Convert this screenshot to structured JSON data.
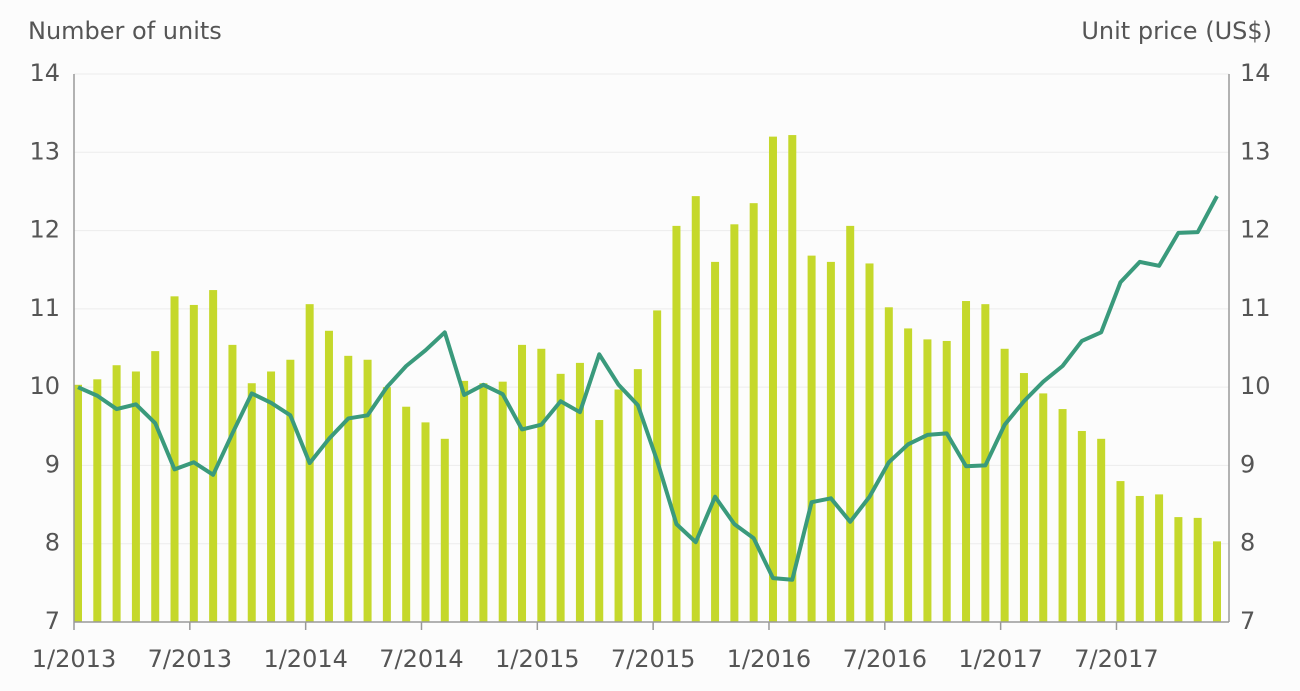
{
  "chart_data": {
    "type": "bar-line",
    "y_label": "Number of units",
    "y2_label": "Unit price (US$)",
    "categories": [
      "1/2013",
      null,
      null,
      null,
      null,
      null,
      "7/2013",
      null,
      null,
      null,
      null,
      null,
      "1/2014",
      null,
      null,
      null,
      null,
      null,
      "7/2014",
      null,
      null,
      null,
      null,
      null,
      "1/2015",
      null,
      null,
      null,
      null,
      null,
      "7/2015",
      null,
      null,
      null,
      null,
      null,
      "1/2016",
      null,
      null,
      null,
      null,
      null,
      "7/2016",
      null,
      null,
      null,
      null,
      null,
      "1/2017",
      null,
      null,
      null,
      null,
      null,
      "7/2017",
      null,
      null,
      null,
      null,
      null
    ],
    "series": [
      {
        "type": "bar",
        "color": "#c5d82b",
        "values": [
          10.03,
          10.1,
          10.28,
          10.2,
          10.46,
          11.16,
          11.05,
          11.24,
          10.54,
          10.05,
          10.2,
          10.35,
          11.06,
          10.72,
          10.4,
          10.35,
          10.0,
          9.75,
          9.55,
          9.34,
          10.08,
          10.05,
          10.07,
          10.54,
          10.49,
          10.17,
          10.31,
          9.58,
          9.97,
          10.23,
          10.98,
          12.06,
          12.44,
          11.6,
          12.08,
          12.35,
          13.2,
          13.22,
          11.68,
          11.6,
          12.06,
          11.58,
          11.02,
          10.75,
          10.61,
          10.59,
          11.1,
          11.06,
          10.49,
          10.18,
          9.92,
          9.72,
          9.44,
          9.34,
          8.8,
          8.61,
          8.63,
          8.34,
          8.33,
          8.03
        ]
      },
      {
        "type": "line",
        "axis": "y2",
        "color": "#3a9a7c",
        "values": [
          10.0,
          9.89,
          9.72,
          9.78,
          9.54,
          8.95,
          9.04,
          8.88,
          9.41,
          9.92,
          9.8,
          9.64,
          9.03,
          9.34,
          9.6,
          9.64,
          10.0,
          10.27,
          10.47,
          10.7,
          9.9,
          10.03,
          9.91,
          9.46,
          9.52,
          9.82,
          9.68,
          10.42,
          10.03,
          9.77,
          9.06,
          8.25,
          8.02,
          8.6,
          8.25,
          8.07,
          7.56,
          7.54,
          8.53,
          8.58,
          8.28,
          8.6,
          9.04,
          9.27,
          9.39,
          9.41,
          8.99,
          9.0,
          9.52,
          9.82,
          10.07,
          10.27,
          10.59,
          10.7,
          11.34,
          11.6,
          11.55,
          11.97,
          11.98,
          12.44
        ]
      }
    ],
    "ylim": [
      7,
      14
    ],
    "yticks": [
      7,
      8,
      9,
      10,
      11,
      12,
      13,
      14
    ],
    "y2lim": [
      7,
      14
    ],
    "y2ticks": [
      7,
      8,
      9,
      10,
      11,
      12,
      13,
      14
    ],
    "grid": true
  }
}
